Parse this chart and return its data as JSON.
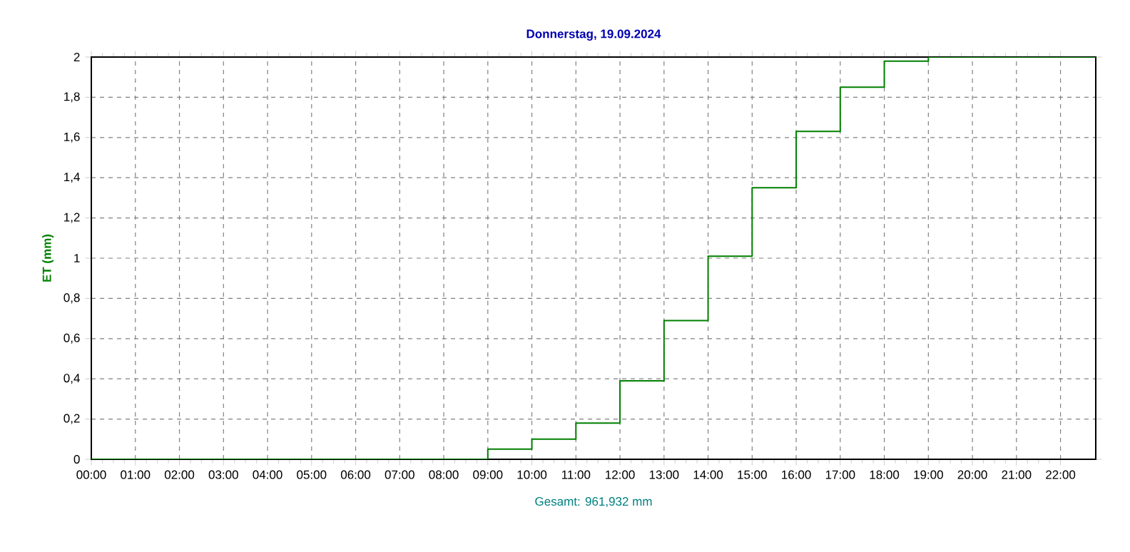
{
  "chart_data": {
    "type": "step",
    "title": "Donnerstag, 19.09.2024",
    "ylabel": "ET  (mm)",
    "annotations": [
      "Gesamt: 961,932 mm"
    ],
    "x": [
      0,
      9,
      10,
      11,
      12,
      13,
      14,
      15,
      16,
      17,
      18,
      19,
      22.8
    ],
    "series": [
      {
        "color": "#008000",
        "values": [
          0,
          0.05,
          0.1,
          0.18,
          0.39,
          0.69,
          1.01,
          1.35,
          1.63,
          1.85,
          1.98,
          2.0,
          2.0
        ]
      }
    ],
    "xlim": [
      0,
      22.8
    ],
    "ylim": [
      0,
      2
    ],
    "xticks": [
      {
        "value": 0,
        "label": "00:00"
      },
      {
        "value": 1,
        "label": "01:00"
      },
      {
        "value": 2,
        "label": "02:00"
      },
      {
        "value": 3,
        "label": "03:00"
      },
      {
        "value": 4,
        "label": "04:00"
      },
      {
        "value": 5,
        "label": "05:00"
      },
      {
        "value": 6,
        "label": "06:00"
      },
      {
        "value": 7,
        "label": "07:00"
      },
      {
        "value": 8,
        "label": "08:00"
      },
      {
        "value": 9,
        "label": "09:00"
      },
      {
        "value": 10,
        "label": "10:00"
      },
      {
        "value": 11,
        "label": "11:00"
      },
      {
        "value": 12,
        "label": "12:00"
      },
      {
        "value": 13,
        "label": "13:00"
      },
      {
        "value": 14,
        "label": "14:00"
      },
      {
        "value": 15,
        "label": "15:00"
      },
      {
        "value": 16,
        "label": "16:00"
      },
      {
        "value": 17,
        "label": "17:00"
      },
      {
        "value": 18,
        "label": "18:00"
      },
      {
        "value": 19,
        "label": "19:00"
      },
      {
        "value": 20,
        "label": "20:00"
      },
      {
        "value": 21,
        "label": "21:00"
      },
      {
        "value": 22,
        "label": "22:00"
      }
    ],
    "yticks": [
      0,
      {
        "value": 0.2,
        "label": "0,2"
      },
      {
        "value": 0.4,
        "label": "0,4"
      },
      {
        "value": 0.6,
        "label": "0,6"
      },
      {
        "value": 0.8,
        "label": "0,8"
      },
      1,
      {
        "value": 1.2,
        "label": "1,2"
      },
      {
        "value": 1.4,
        "label": "1,4"
      },
      {
        "value": 1.6,
        "label": "1,6"
      },
      {
        "value": 1.8,
        "label": "1,8"
      },
      2
    ],
    "grid": true,
    "line_style": "solid",
    "marker": "none"
  }
}
